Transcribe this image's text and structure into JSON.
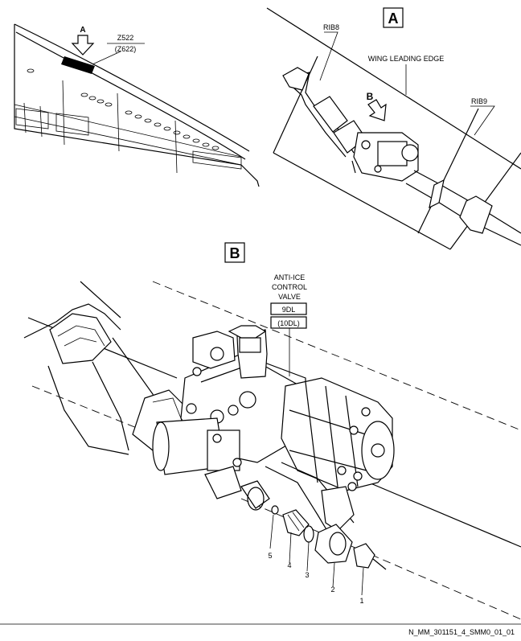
{
  "views": {
    "view_a_label": "A",
    "view_b_label": "B",
    "arrow_a_label": "A",
    "arrow_b_label": "B"
  },
  "zones": {
    "zone_main": "Z522",
    "zone_alt": "(Z622)"
  },
  "ribs": {
    "rib_left": "RIB8",
    "rib_right": "RIB9"
  },
  "wing_leading_edge": "WING LEADING EDGE",
  "valve": {
    "title_line1": "ANTI-ICE",
    "title_line2": "CONTROL",
    "title_line3": "VALVE",
    "id_main": "9DL",
    "id_alt": "(10DL)"
  },
  "items": [
    "1",
    "2",
    "3",
    "4",
    "5"
  ],
  "footer_ref": "N_MM_301151_4_SMM0_01_01"
}
